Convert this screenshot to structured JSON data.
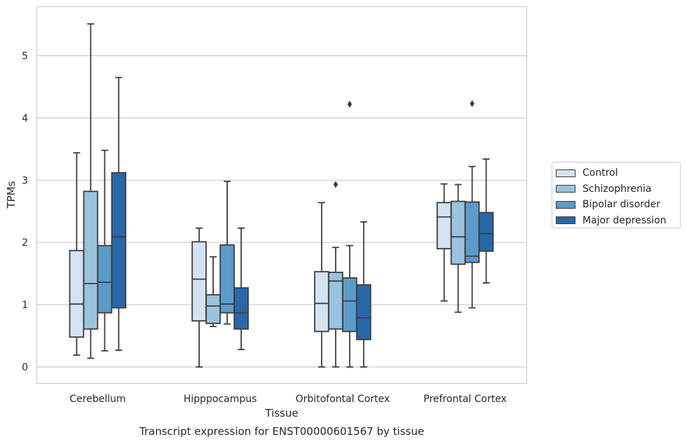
{
  "chart_data": {
    "type": "box",
    "xlabel": "Tissue",
    "ylabel": "TPMs",
    "caption": "Transcript expression for ENST00000601567 by tissue",
    "ylim": [
      -0.27,
      5.77
    ],
    "yticks": [
      0,
      1,
      2,
      3,
      4,
      5
    ],
    "grid": "horizontal",
    "legend_position": "right",
    "categories": [
      "Cerebellum",
      "Hipppocampus",
      "Orbitofontal Cortex",
      "Prefrontal Cortex"
    ],
    "series": [
      {
        "name": "Control",
        "color": "#d4e3f2",
        "boxes": [
          {
            "min": 0.19,
            "q1": 0.48,
            "median": 1.01,
            "q3": 1.87,
            "max": 3.44,
            "outliers": []
          },
          {
            "min": 0.0,
            "q1": 0.74,
            "median": 1.41,
            "q3": 2.01,
            "max": 2.23,
            "outliers": []
          },
          {
            "min": 0.0,
            "q1": 0.57,
            "median": 1.02,
            "q3": 1.53,
            "max": 2.64,
            "outliers": []
          },
          {
            "min": 1.06,
            "q1": 1.9,
            "median": 2.41,
            "q3": 2.64,
            "max": 2.94,
            "outliers": []
          }
        ]
      },
      {
        "name": "Schizophrenia",
        "color": "#9bc3de",
        "boxes": [
          {
            "min": 0.14,
            "q1": 0.61,
            "median": 1.34,
            "q3": 2.82,
            "max": 5.51,
            "outliers": []
          },
          {
            "min": 0.65,
            "q1": 0.7,
            "median": 0.98,
            "q3": 1.16,
            "max": 1.77,
            "outliers": []
          },
          {
            "min": 0.0,
            "q1": 0.61,
            "median": 1.38,
            "q3": 1.52,
            "max": 1.92,
            "outliers": [
              2.93
            ]
          },
          {
            "min": 0.88,
            "q1": 1.65,
            "median": 2.09,
            "q3": 2.66,
            "max": 2.93,
            "outliers": []
          }
        ]
      },
      {
        "name": "Bipolar disorder",
        "color": "#5b9bc9",
        "boxes": [
          {
            "min": 0.26,
            "q1": 0.87,
            "median": 1.36,
            "q3": 1.95,
            "max": 3.48,
            "outliers": []
          },
          {
            "min": 0.69,
            "q1": 0.87,
            "median": 1.01,
            "q3": 1.96,
            "max": 2.98,
            "outliers": []
          },
          {
            "min": 0.0,
            "q1": 0.57,
            "median": 1.06,
            "q3": 1.43,
            "max": 1.95,
            "outliers": [
              4.22
            ]
          },
          {
            "min": 0.95,
            "q1": 1.68,
            "median": 1.78,
            "q3": 2.65,
            "max": 3.22,
            "outliers": [
              4.23
            ]
          }
        ]
      },
      {
        "name": "Major depression",
        "color": "#2868a8",
        "boxes": [
          {
            "min": 0.27,
            "q1": 0.95,
            "median": 2.09,
            "q3": 3.12,
            "max": 4.65,
            "outliers": []
          },
          {
            "min": 0.28,
            "q1": 0.61,
            "median": 0.87,
            "q3": 1.27,
            "max": 2.23,
            "outliers": []
          },
          {
            "min": 0.0,
            "q1": 0.44,
            "median": 0.79,
            "q3": 1.32,
            "max": 2.33,
            "outliers": []
          },
          {
            "min": 1.35,
            "q1": 1.86,
            "median": 2.14,
            "q3": 2.48,
            "max": 3.34,
            "outliers": []
          }
        ]
      }
    ]
  }
}
